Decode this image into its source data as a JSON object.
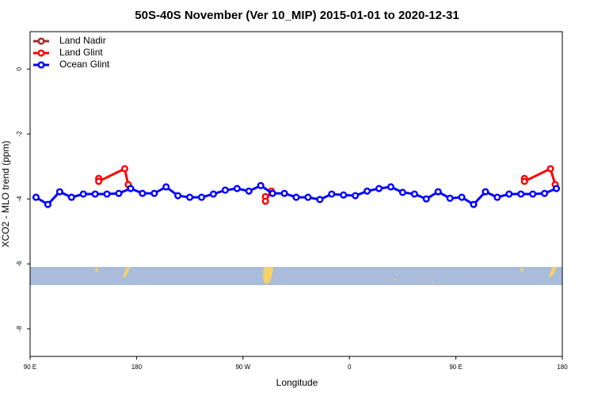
{
  "chart_data": {
    "type": "line",
    "title": "50S-40S November (Ver 10_MIP)   2015-01-01 to 2020-12-31",
    "x_label": "Longitude",
    "y_label": "XCO2 - MLO trend (ppm)",
    "xlim": [
      90,
      540
    ],
    "xticks": [
      {
        "value": 90,
        "label": "90 E"
      },
      180,
      {
        "value": 270,
        "label": "90 W"
      },
      {
        "value": 360,
        "label": "0"
      },
      {
        "value": 450,
        "label": "90 E"
      },
      {
        "value": 540,
        "label": "180"
      }
    ],
    "ylim": [
      -8.85,
      1.15
    ],
    "yticks": [
      0,
      -2,
      -4,
      -6,
      -8
    ],
    "legend": "top-left",
    "series": [
      {
        "name": "Land Nadir",
        "color": "#a52a2a",
        "x": [],
        "values": []
      },
      {
        "name": "Land Glint",
        "color": "#ff0000",
        "x": [
          148,
          148,
          170,
          173,
          null,
          289,
          289,
          294,
          null,
          508,
          508,
          530,
          534
        ],
        "values": [
          -3.37,
          -3.46,
          -3.07,
          -3.56,
          null,
          -3.93,
          -4.07,
          -3.76,
          null,
          -3.37,
          -3.46,
          -3.07,
          -3.56
        ]
      },
      {
        "name": "Ocean Glint",
        "color": "#0000ff",
        "x": [
          95,
          105,
          115,
          125,
          135,
          145,
          155,
          165,
          175,
          185,
          195,
          205,
          215,
          225,
          235,
          245,
          255,
          265,
          275,
          285,
          295,
          305,
          315,
          325,
          335,
          345,
          355,
          365,
          375,
          385,
          395,
          405,
          415,
          425,
          435,
          445,
          455,
          465,
          475,
          485,
          495,
          505,
          515,
          525,
          535
        ],
        "values": [
          -3.95,
          -4.17,
          -3.78,
          -3.95,
          -3.85,
          -3.85,
          -3.85,
          -3.83,
          -3.68,
          -3.83,
          -3.83,
          -3.63,
          -3.9,
          -3.95,
          -3.95,
          -3.85,
          -3.73,
          -3.68,
          -3.76,
          -3.59,
          -3.83,
          -3.83,
          -3.95,
          -3.95,
          -4.02,
          -3.85,
          -3.88,
          -3.9,
          -3.76,
          -3.68,
          -3.63,
          -3.8,
          -3.85,
          -4.0,
          -3.78,
          -3.98,
          -3.95,
          -4.17,
          -3.78,
          -3.95,
          -3.85,
          -3.85,
          -3.85,
          -3.83,
          -3.68
        ]
      }
    ]
  }
}
